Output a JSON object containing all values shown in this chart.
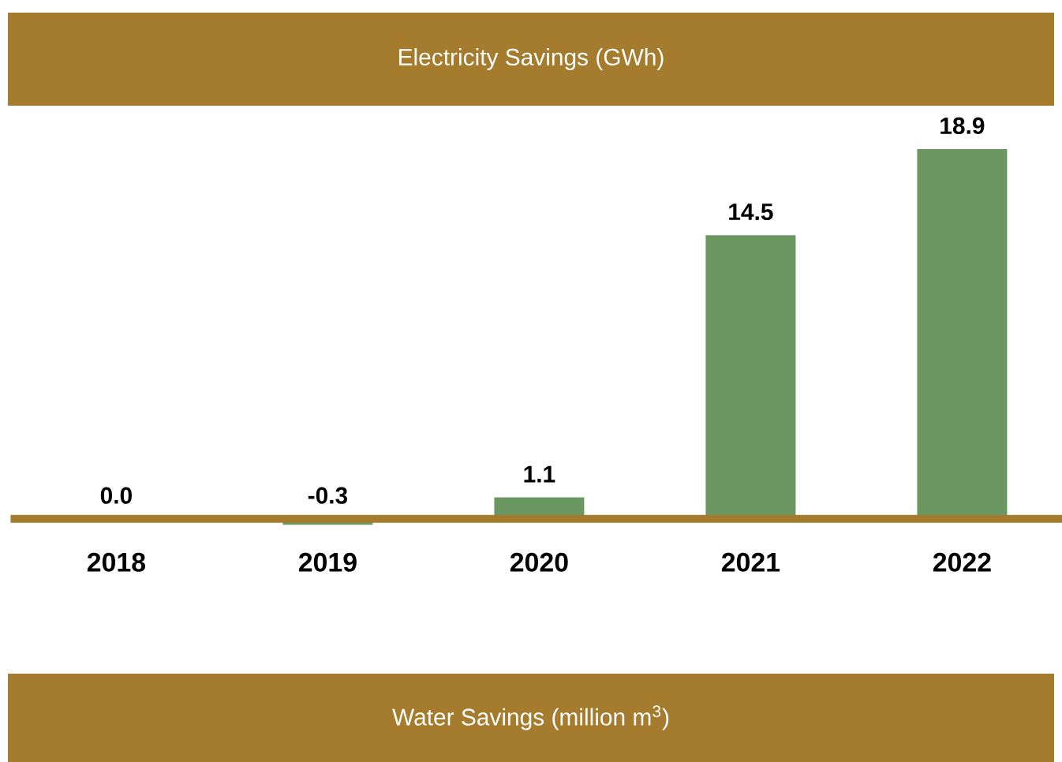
{
  "chart_data": {
    "type": "bar",
    "title": "Electricity Savings (GWh)",
    "categories": [
      "2018",
      "2019",
      "2020",
      "2021",
      "2022"
    ],
    "values": [
      0.0,
      -0.3,
      1.1,
      14.5,
      18.9
    ],
    "color": "#6b9762",
    "data_labels": true,
    "value_labels": [
      "0.0",
      "-0.3",
      "1.1",
      "14.5",
      "18.9"
    ],
    "annotations": [
      "Water Savings (million m$^{3}$)"
    ]
  }
}
